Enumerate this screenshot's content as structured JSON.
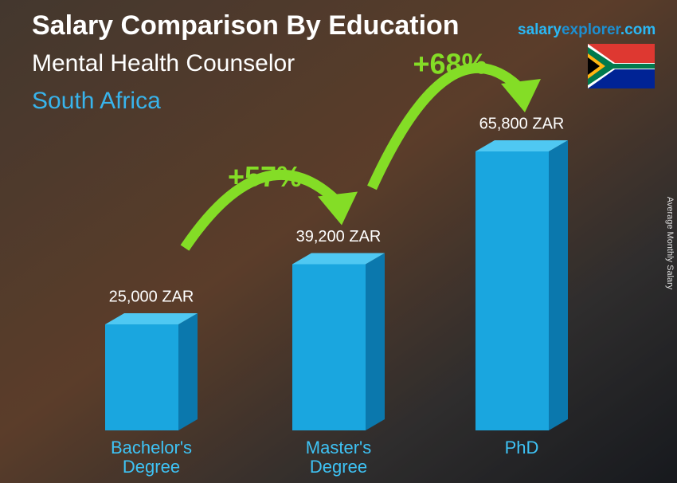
{
  "chart_data": {
    "type": "bar3d",
    "title": "Salary Comparison By Education",
    "subtitle": "Mental Health Counselor",
    "location": "South Africa",
    "brand": [
      "salary",
      "explorer",
      ".com"
    ],
    "y_label": "Average Monthly Salary",
    "categories": [
      "Bachelor's Degree",
      "Master's Degree",
      "PhD"
    ],
    "values": [
      25000,
      39200,
      65800
    ],
    "value_labels": [
      "25,000 ZAR",
      "39,200 ZAR",
      "65,800 ZAR"
    ],
    "color": "#1aa6df",
    "annotations": [
      "+57%",
      "+68%"
    ],
    "annotation_color": "#84dd26"
  }
}
